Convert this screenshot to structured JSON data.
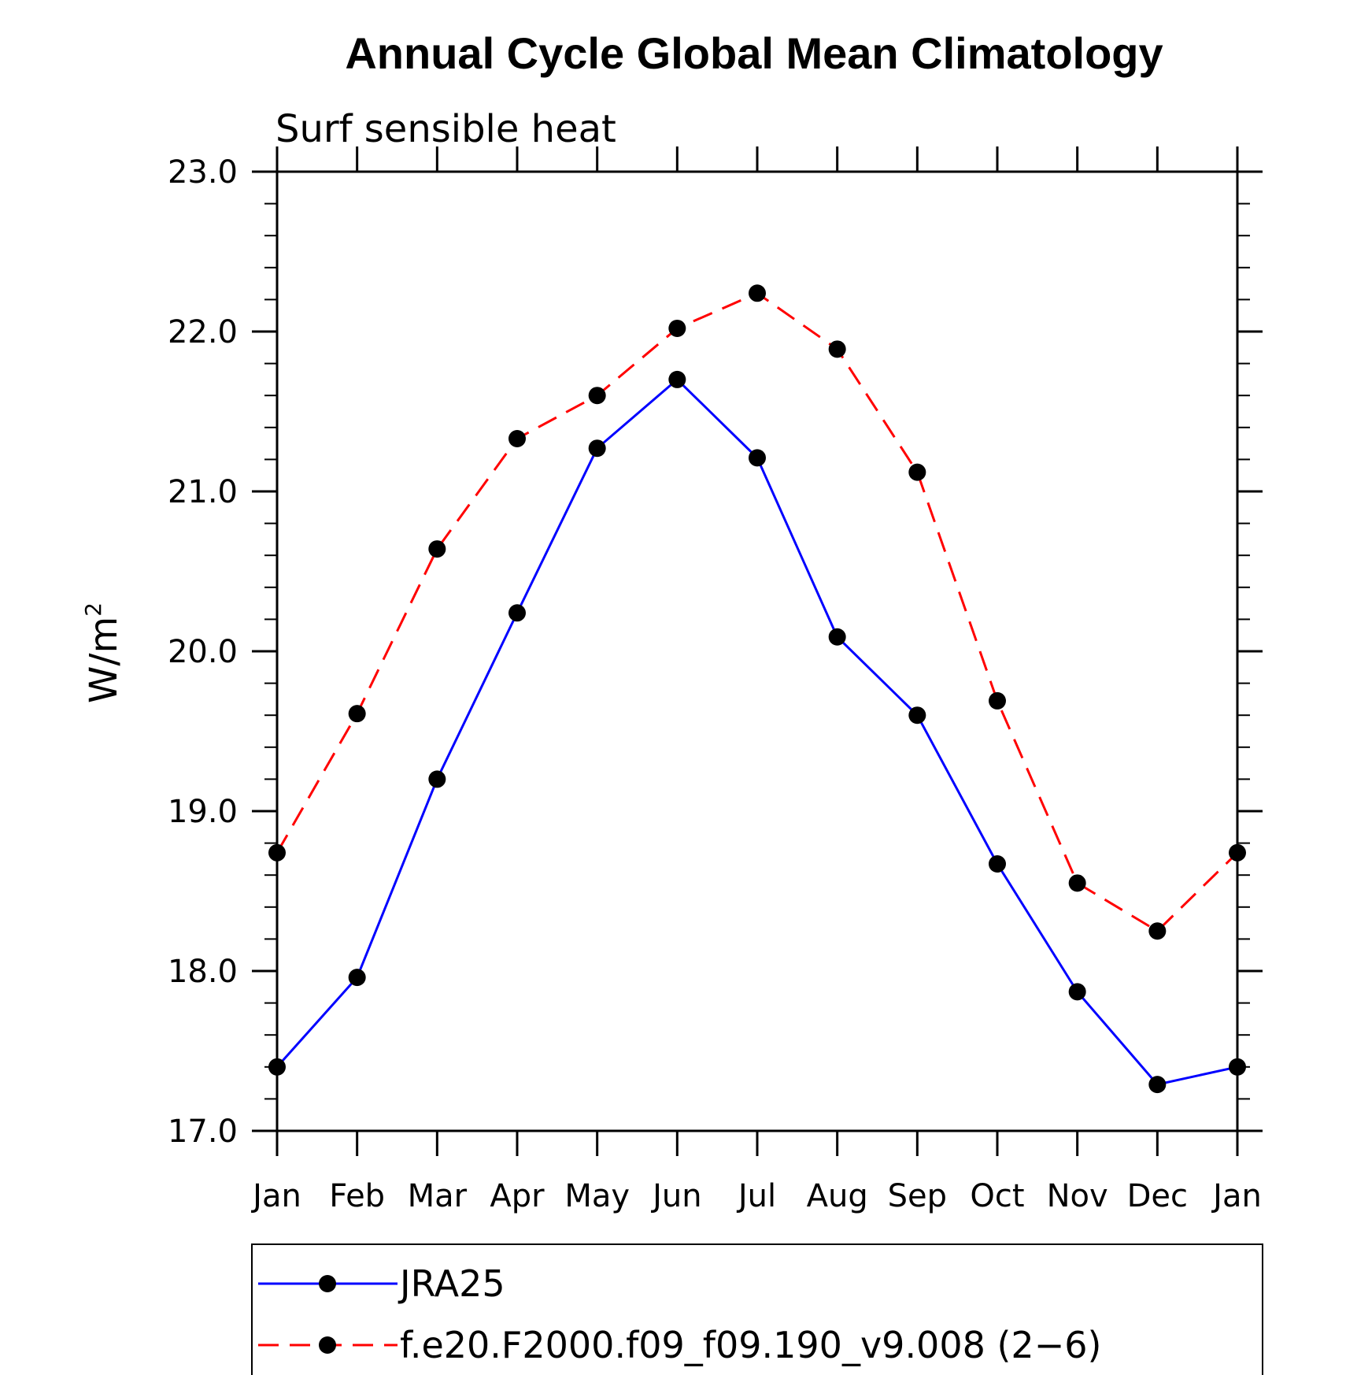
{
  "chart_data": {
    "type": "line",
    "title": "Annual Cycle Global Mean Climatology",
    "subtitle": "Surf sensible heat",
    "ylabel": "W/m",
    "ylabel_superscript": "2",
    "categories": [
      "Jan",
      "Feb",
      "Mar",
      "Apr",
      "May",
      "Jun",
      "Jul",
      "Aug",
      "Sep",
      "Oct",
      "Nov",
      "Dec",
      "Jan"
    ],
    "ylim": [
      17.0,
      23.0
    ],
    "yticks": [
      17.0,
      18.0,
      19.0,
      20.0,
      21.0,
      22.0,
      23.0
    ],
    "ytick_labels": [
      "17.0",
      "18.0",
      "19.0",
      "20.0",
      "21.0",
      "22.0",
      "23.0"
    ],
    "grid": false,
    "legend_position": "bottom",
    "series": [
      {
        "name": "JRA25",
        "color": "#0000ff",
        "line_style": "solid",
        "marker": "filled-circle",
        "values": [
          17.4,
          17.96,
          19.2,
          20.24,
          21.27,
          21.7,
          21.21,
          20.09,
          19.6,
          18.67,
          17.87,
          17.29,
          17.4
        ]
      },
      {
        "name": "f.e20.F2000.f09_f09.190_v9.008 (2−6)",
        "color": "#ff0000",
        "line_style": "dashed",
        "marker": "filled-circle",
        "values": [
          18.74,
          19.61,
          20.64,
          21.33,
          21.6,
          22.02,
          22.24,
          21.89,
          21.12,
          19.69,
          18.55,
          18.25,
          18.74
        ]
      }
    ]
  }
}
